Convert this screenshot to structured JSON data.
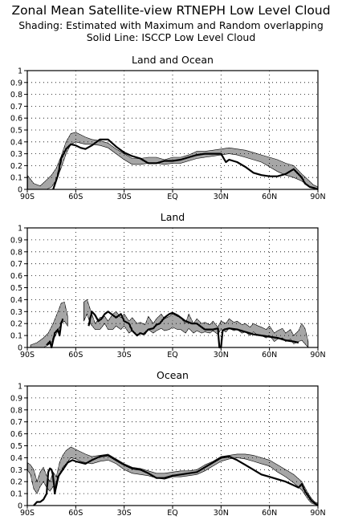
{
  "header": {
    "title": "Zonal Mean Satellite-view RTNEPH Low Level Cloud",
    "line2": "Shading: Estimated with Maximum and Random overlapping",
    "line3": "Solid Line: ISCCP Low Level Cloud"
  },
  "chart_data": [
    {
      "type": "line",
      "title": "Land and Ocean",
      "xlabel": "",
      "ylabel": "",
      "xlim": [
        -90,
        90
      ],
      "ylim": [
        0,
        1
      ],
      "x_ticks": [
        -90,
        -60,
        -30,
        0,
        30,
        60,
        90
      ],
      "x_tick_labels": [
        "90S",
        "60S",
        "30S",
        "EQ",
        "30N",
        "60N",
        "90N"
      ],
      "y_ticks": [
        0,
        0.1,
        0.2,
        0.3,
        0.4,
        0.5,
        0.6,
        0.7,
        0.8,
        0.9,
        1
      ],
      "y_tick_labels": [
        "0",
        "0.1",
        "0.2",
        "0.3",
        "0.4",
        "0.5",
        "0.6",
        "0.7",
        "0.8",
        "0.9",
        "1"
      ],
      "grid": true,
      "series": [
        {
          "role": "solid-line",
          "color": "#000000",
          "x": [
            -74,
            -71,
            -69,
            -66,
            -63,
            -60,
            -57,
            -54,
            -50,
            -45,
            -40,
            -35,
            -30,
            -25,
            -20,
            -15,
            -10,
            -5,
            0,
            5,
            10,
            15,
            20,
            25,
            30,
            33,
            35,
            40,
            45,
            50,
            55,
            60,
            65,
            70,
            75,
            80,
            82,
            85,
            88,
            90
          ],
          "y": [
            0.0,
            0.12,
            0.26,
            0.34,
            0.38,
            0.37,
            0.35,
            0.34,
            0.37,
            0.42,
            0.42,
            0.36,
            0.31,
            0.28,
            0.26,
            0.22,
            0.22,
            0.24,
            0.24,
            0.25,
            0.27,
            0.29,
            0.3,
            0.3,
            0.3,
            0.23,
            0.25,
            0.23,
            0.19,
            0.14,
            0.12,
            0.11,
            0.11,
            0.13,
            0.17,
            0.1,
            0.05,
            0.02,
            0.01,
            0.0
          ]
        },
        {
          "role": "shading",
          "color": "#000000",
          "x": [
            -90,
            -86,
            -82,
            -78,
            -75,
            -72,
            -69,
            -66,
            -63,
            -60,
            -57,
            -54,
            -50,
            -45,
            -40,
            -35,
            -30,
            -25,
            -20,
            -15,
            -10,
            -5,
            0,
            5,
            10,
            15,
            20,
            25,
            30,
            35,
            40,
            45,
            50,
            55,
            60,
            65,
            70,
            75,
            80,
            84,
            87,
            90
          ],
          "upper": [
            0.12,
            0.05,
            0.03,
            0.08,
            0.12,
            0.18,
            0.28,
            0.4,
            0.47,
            0.48,
            0.46,
            0.44,
            0.42,
            0.41,
            0.39,
            0.34,
            0.3,
            0.26,
            0.26,
            0.27,
            0.27,
            0.25,
            0.27,
            0.27,
            0.29,
            0.32,
            0.32,
            0.33,
            0.34,
            0.35,
            0.34,
            0.33,
            0.31,
            0.29,
            0.27,
            0.25,
            0.22,
            0.2,
            0.13,
            0.08,
            0.04,
            0.02
          ],
          "lower": [
            0.0,
            0.0,
            0.0,
            0.0,
            0.02,
            0.08,
            0.18,
            0.3,
            0.38,
            0.4,
            0.39,
            0.38,
            0.38,
            0.37,
            0.35,
            0.3,
            0.25,
            0.21,
            0.21,
            0.22,
            0.22,
            0.21,
            0.22,
            0.22,
            0.24,
            0.26,
            0.27,
            0.28,
            0.29,
            0.3,
            0.29,
            0.27,
            0.25,
            0.23,
            0.19,
            0.15,
            0.12,
            0.1,
            0.07,
            0.03,
            0.01,
            0.0
          ]
        }
      ]
    },
    {
      "type": "line",
      "title": "Land",
      "xlabel": "",
      "ylabel": "",
      "xlim": [
        -90,
        90
      ],
      "ylim": [
        0,
        1
      ],
      "x_ticks": [
        -90,
        -60,
        -30,
        0,
        30,
        60,
        90
      ],
      "x_tick_labels": [
        "90S",
        "60S",
        "30S",
        "EQ",
        "30N",
        "60N",
        "90N"
      ],
      "y_ticks": [
        0,
        0.1,
        0.2,
        0.3,
        0.4,
        0.5,
        0.6,
        0.7,
        0.8,
        0.9,
        1
      ],
      "y_tick_labels": [
        "0",
        "0.1",
        "0.2",
        "0.3",
        "0.4",
        "0.5",
        "0.6",
        "0.7",
        "0.8",
        "0.9",
        "1"
      ],
      "grid": true,
      "series": [
        {
          "role": "solid-line",
          "color": "#000000",
          "segments": [
            {
              "x": [
                -78,
                -76,
                -75,
                -73,
                -71,
                -70,
                -69,
                -68
              ],
              "y": [
                0.02,
                0.05,
                0.0,
                0.12,
                0.15,
                0.1,
                0.2,
                0.24
              ]
            },
            {
              "x": [
                -52,
                -50,
                -48,
                -46,
                -44,
                -42,
                -40,
                -38,
                -35,
                -32,
                -30,
                -27,
                -25,
                -22,
                -20,
                -18,
                -15,
                -12,
                -10,
                -8,
                -5,
                -2,
                0,
                3,
                5,
                8,
                10,
                12,
                15,
                18,
                20,
                25,
                28,
                29,
                30,
                31,
                32,
                35,
                40,
                45,
                50,
                55,
                60,
                65,
                70,
                75,
                78
              ],
              "y": [
                0.18,
                0.3,
                0.27,
                0.22,
                0.24,
                0.28,
                0.3,
                0.28,
                0.25,
                0.28,
                0.22,
                0.2,
                0.14,
                0.1,
                0.12,
                0.11,
                0.15,
                0.16,
                0.19,
                0.2,
                0.25,
                0.28,
                0.29,
                0.27,
                0.25,
                0.22,
                0.21,
                0.2,
                0.2,
                0.17,
                0.15,
                0.15,
                0.16,
                0.0,
                0.0,
                0.14,
                0.15,
                0.16,
                0.15,
                0.13,
                0.11,
                0.1,
                0.09,
                0.08,
                0.06,
                0.05,
                0.04
              ]
            }
          ]
        },
        {
          "role": "shading",
          "color": "#000000",
          "segments": [
            {
              "x": [
                -88,
                -84,
                -80,
                -77,
                -74,
                -71,
                -69,
                -67,
                -65
              ],
              "upper": [
                0.02,
                0.04,
                0.08,
                0.12,
                0.2,
                0.3,
                0.37,
                0.38,
                0.26
              ],
              "lower": [
                0.0,
                0.0,
                0.0,
                0.02,
                0.06,
                0.14,
                0.2,
                0.22,
                0.18
              ]
            },
            {
              "x": [
                -55,
                -53,
                -51,
                -48,
                -45,
                -42,
                -40,
                -37,
                -35,
                -32,
                -30,
                -27,
                -25,
                -22,
                -20,
                -17,
                -15,
                -12,
                -10,
                -7,
                -5,
                -2,
                0,
                3,
                5,
                8,
                10,
                13,
                15,
                18,
                20,
                23,
                25,
                28,
                30,
                33,
                35,
                38,
                40,
                43,
                45,
                48,
                50,
                53,
                55,
                58,
                60,
                63,
                65,
                68,
                70,
                73,
                75,
                78,
                80,
                82,
                84
              ],
              "upper": [
                0.38,
                0.4,
                0.32,
                0.2,
                0.25,
                0.26,
                0.22,
                0.28,
                0.3,
                0.25,
                0.28,
                0.22,
                0.25,
                0.2,
                0.21,
                0.19,
                0.26,
                0.2,
                0.24,
                0.28,
                0.24,
                0.26,
                0.28,
                0.26,
                0.25,
                0.2,
                0.28,
                0.2,
                0.24,
                0.2,
                0.21,
                0.19,
                0.22,
                0.17,
                0.22,
                0.2,
                0.24,
                0.21,
                0.22,
                0.19,
                0.2,
                0.17,
                0.2,
                0.18,
                0.17,
                0.15,
                0.18,
                0.12,
                0.14,
                0.16,
                0.12,
                0.15,
                0.1,
                0.14,
                0.2,
                0.16,
                0.05
              ],
              "lower": [
                0.22,
                0.28,
                0.2,
                0.15,
                0.15,
                0.2,
                0.15,
                0.15,
                0.18,
                0.15,
                0.18,
                0.12,
                0.14,
                0.1,
                0.12,
                0.11,
                0.15,
                0.12,
                0.14,
                0.16,
                0.14,
                0.15,
                0.17,
                0.15,
                0.15,
                0.12,
                0.16,
                0.12,
                0.14,
                0.12,
                0.13,
                0.12,
                0.14,
                0.11,
                0.15,
                0.13,
                0.16,
                0.14,
                0.15,
                0.12,
                0.13,
                0.1,
                0.13,
                0.1,
                0.1,
                0.08,
                0.1,
                0.05,
                0.07,
                0.08,
                0.05,
                0.07,
                0.03,
                0.05,
                0.06,
                0.03,
                0.0
              ]
            }
          ]
        }
      ]
    },
    {
      "type": "line",
      "title": "Ocean",
      "xlabel": "",
      "ylabel": "",
      "xlim": [
        -90,
        90
      ],
      "ylim": [
        0,
        1
      ],
      "x_ticks": [
        -90,
        -60,
        -30,
        0,
        30,
        60,
        90
      ],
      "x_tick_labels": [
        "90S",
        "60S",
        "30S",
        "EQ",
        "30N",
        "60N",
        "90N"
      ],
      "y_ticks": [
        0,
        0.1,
        0.2,
        0.3,
        0.4,
        0.5,
        0.6,
        0.7,
        0.8,
        0.9,
        1
      ],
      "y_tick_labels": [
        "0",
        "0.1",
        "0.2",
        "0.3",
        "0.4",
        "0.5",
        "0.6",
        "0.7",
        "0.8",
        "0.9",
        "1"
      ],
      "grid": true,
      "series": [
        {
          "role": "solid-line",
          "color": "#000000",
          "x": [
            -86,
            -84,
            -82,
            -80,
            -78,
            -77,
            -76,
            -75,
            -74,
            -73,
            -71,
            -69,
            -67,
            -65,
            -62,
            -60,
            -57,
            -54,
            -50,
            -45,
            -40,
            -35,
            -30,
            -25,
            -20,
            -15,
            -10,
            -5,
            0,
            5,
            10,
            15,
            20,
            25,
            30,
            35,
            40,
            45,
            50,
            55,
            60,
            65,
            70,
            75,
            78,
            80,
            82,
            84,
            86,
            88,
            90
          ],
          "y": [
            0.0,
            0.03,
            0.03,
            0.05,
            0.1,
            0.28,
            0.31,
            0.3,
            0.25,
            0.1,
            0.24,
            0.28,
            0.32,
            0.36,
            0.38,
            0.37,
            0.36,
            0.35,
            0.38,
            0.41,
            0.42,
            0.38,
            0.34,
            0.31,
            0.3,
            0.27,
            0.23,
            0.23,
            0.25,
            0.26,
            0.27,
            0.28,
            0.32,
            0.36,
            0.4,
            0.41,
            0.38,
            0.34,
            0.3,
            0.26,
            0.24,
            0.22,
            0.2,
            0.17,
            0.15,
            0.18,
            0.12,
            0.08,
            0.04,
            0.02,
            0.0
          ]
        },
        {
          "role": "shading",
          "color": "#000000",
          "x": [
            -90,
            -88,
            -86,
            -84,
            -82,
            -80,
            -78,
            -76,
            -74,
            -72,
            -70,
            -68,
            -66,
            -63,
            -60,
            -57,
            -54,
            -50,
            -45,
            -40,
            -35,
            -30,
            -25,
            -20,
            -15,
            -10,
            -5,
            0,
            5,
            10,
            15,
            20,
            25,
            30,
            35,
            40,
            45,
            50,
            55,
            60,
            65,
            70,
            75,
            80,
            82,
            84,
            86,
            88,
            90
          ],
          "upper": [
            0.36,
            0.34,
            0.3,
            0.2,
            0.28,
            0.32,
            0.25,
            0.2,
            0.28,
            0.24,
            0.36,
            0.42,
            0.46,
            0.49,
            0.47,
            0.45,
            0.43,
            0.41,
            0.42,
            0.43,
            0.39,
            0.35,
            0.32,
            0.31,
            0.29,
            0.27,
            0.27,
            0.28,
            0.29,
            0.29,
            0.3,
            0.34,
            0.37,
            0.41,
            0.42,
            0.43,
            0.43,
            0.42,
            0.4,
            0.38,
            0.34,
            0.3,
            0.26,
            0.2,
            0.15,
            0.1,
            0.06,
            0.03,
            0.02
          ],
          "lower": [
            0.3,
            0.26,
            0.14,
            0.1,
            0.16,
            0.2,
            0.15,
            0.12,
            0.16,
            0.14,
            0.26,
            0.32,
            0.35,
            0.4,
            0.39,
            0.37,
            0.36,
            0.35,
            0.37,
            0.38,
            0.35,
            0.3,
            0.27,
            0.26,
            0.25,
            0.23,
            0.22,
            0.24,
            0.24,
            0.25,
            0.26,
            0.29,
            0.33,
            0.37,
            0.39,
            0.4,
            0.39,
            0.37,
            0.35,
            0.33,
            0.28,
            0.24,
            0.19,
            0.13,
            0.09,
            0.05,
            0.02,
            0.01,
            0.0
          ]
        }
      ]
    }
  ]
}
